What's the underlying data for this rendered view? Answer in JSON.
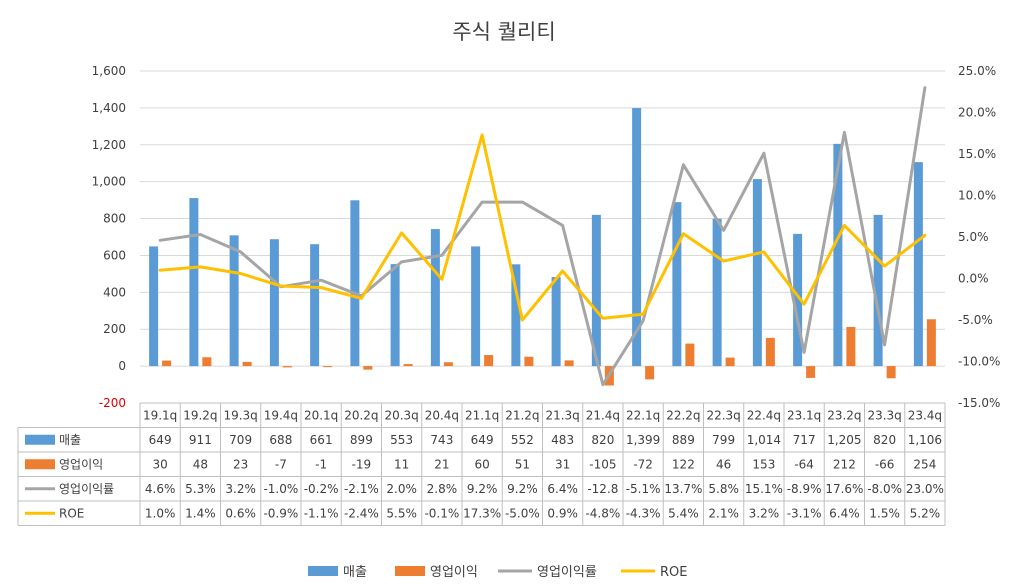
{
  "chart_data": {
    "type": "bar",
    "title": "주식 퀄리티",
    "categories": [
      "19.1q",
      "19.2q",
      "19.3q",
      "19.4q",
      "20.1q",
      "20.2q",
      "20.3q",
      "20.4q",
      "21.1q",
      "21.2q",
      "21.3q",
      "21.4q",
      "22.1q",
      "22.2q",
      "22.3q",
      "22.4q",
      "23.1q",
      "23.2q",
      "23.3q",
      "23.4q"
    ],
    "y_left": {
      "ylim": [
        -200,
        1600
      ],
      "ticks": [
        "-200",
        "0",
        "200",
        "400",
        "600",
        "800",
        "1,000",
        "1,200",
        "1,400",
        "1,600"
      ]
    },
    "y_right": {
      "ylim": [
        -15,
        25
      ],
      "ticks": [
        "-15.0%",
        "-10.0%",
        "-5.0%",
        "0.0%",
        "5.0%",
        "10.0%",
        "15.0%",
        "20.0%",
        "25.0%"
      ]
    },
    "grid": true,
    "legend_position": "bottom",
    "series": [
      {
        "name": "매출",
        "type": "bar",
        "axis": "left",
        "color": "#5b9bd5",
        "values": [
          649,
          911,
          709,
          688,
          661,
          899,
          553,
          743,
          649,
          552,
          483,
          820,
          1399,
          889,
          799,
          1014,
          717,
          1205,
          820,
          1106
        ],
        "labels": [
          "649",
          "911",
          "709",
          "688",
          "661",
          "899",
          "553",
          "743",
          "649",
          "552",
          "483",
          "820",
          "1,399",
          "889",
          "799",
          "1,014",
          "717",
          "1,205",
          "820",
          "1,106"
        ]
      },
      {
        "name": "영업이익",
        "type": "bar",
        "axis": "left",
        "color": "#ed7d31",
        "values": [
          30,
          48,
          23,
          -7,
          -1,
          -19,
          11,
          21,
          60,
          51,
          31,
          -105,
          -72,
          122,
          46,
          153,
          -64,
          212,
          -66,
          254
        ],
        "labels": [
          "30",
          "48",
          "23",
          "-7",
          "-1",
          "-19",
          "11",
          "21",
          "60",
          "51",
          "31",
          "-105",
          "-72",
          "122",
          "46",
          "153",
          "-64",
          "212",
          "-66",
          "254"
        ]
      },
      {
        "name": "영업이익률",
        "type": "line",
        "axis": "right",
        "color": "#a5a5a5",
        "values": [
          4.6,
          5.3,
          3.2,
          -1.0,
          -0.2,
          -2.1,
          2.0,
          2.8,
          9.2,
          9.2,
          6.4,
          -12.8,
          -5.1,
          13.7,
          5.8,
          15.1,
          -8.9,
          17.6,
          -8.0,
          23.0
        ],
        "labels": [
          "4.6%",
          "5.3%",
          "3.2%",
          "-1.0%",
          "-0.2%",
          "-2.1%",
          "2.0%",
          "2.8%",
          "9.2%",
          "9.2%",
          "6.4%",
          "-12.8",
          "-5.1%",
          "13.7%",
          "5.8%",
          "15.1%",
          "-8.9%",
          "17.6%",
          "-8.0%",
          "23.0%"
        ]
      },
      {
        "name": "ROE",
        "type": "line",
        "axis": "right",
        "color": "#ffc000",
        "values": [
          1.0,
          1.4,
          0.6,
          -0.9,
          -1.1,
          -2.4,
          5.5,
          -0.1,
          17.3,
          -5.0,
          0.9,
          -4.8,
          -4.3,
          5.4,
          2.1,
          3.2,
          -3.1,
          6.4,
          1.5,
          5.2
        ],
        "labels": [
          "1.0%",
          "1.4%",
          "0.6%",
          "-0.9%",
          "-1.1%",
          "-2.4%",
          "5.5%",
          "-0.1%",
          "17.3%",
          "-5.0%",
          "0.9%",
          "-4.8%",
          "-4.3%",
          "5.4%",
          "2.1%",
          "3.2%",
          "-3.1%",
          "6.4%",
          "1.5%",
          "5.2%"
        ]
      }
    ]
  }
}
